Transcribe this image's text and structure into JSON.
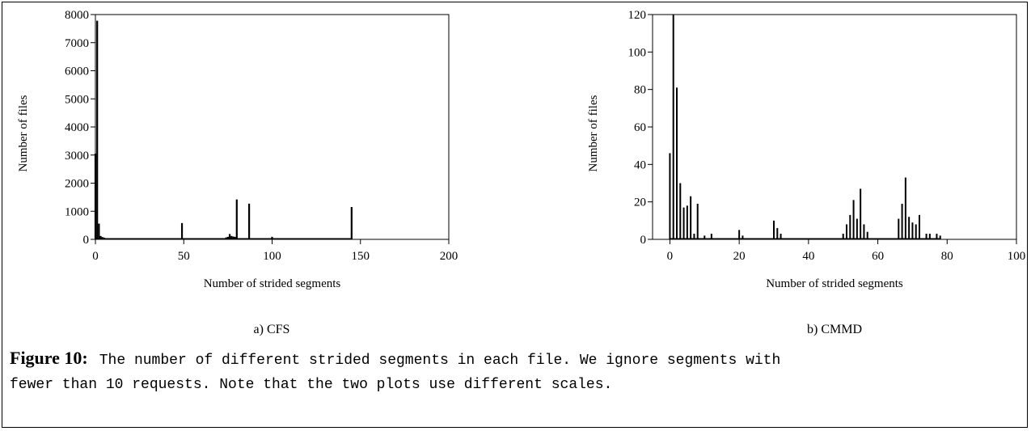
{
  "chart_data": [
    {
      "type": "bar",
      "title": "a) CFS",
      "xlabel": "Number of strided segments",
      "ylabel": "Number of files",
      "xlim": [
        0,
        200
      ],
      "ylim": [
        0,
        8000
      ],
      "xticks": [
        0,
        50,
        100,
        150,
        200
      ],
      "yticks": [
        0,
        1000,
        2000,
        3000,
        4000,
        5000,
        6000,
        7000,
        8000
      ],
      "grid": false,
      "x": [
        0,
        1,
        2,
        3,
        4,
        5,
        6,
        7,
        8,
        10,
        12,
        15,
        20,
        25,
        30,
        35,
        40,
        43,
        45,
        47,
        49,
        52,
        55,
        60,
        65,
        70,
        73,
        74,
        75,
        76,
        77,
        78,
        79,
        80,
        82,
        87,
        90,
        95,
        100,
        110,
        120,
        125,
        130,
        140,
        142,
        145
      ],
      "values": [
        3050,
        7780,
        560,
        120,
        80,
        60,
        40,
        30,
        25,
        20,
        15,
        12,
        10,
        10,
        10,
        10,
        10,
        20,
        30,
        20,
        580,
        20,
        15,
        10,
        10,
        10,
        30,
        70,
        90,
        190,
        120,
        100,
        90,
        1420,
        30,
        1270,
        20,
        15,
        90,
        10,
        10,
        15,
        10,
        10,
        20,
        1150
      ]
    },
    {
      "type": "bar",
      "title": "b) CMMD",
      "xlabel": "Number of strided segments",
      "ylabel": "Number of files",
      "xlim": [
        -5,
        100
      ],
      "ylim": [
        0,
        120
      ],
      "xticks": [
        0,
        20,
        40,
        60,
        80,
        100
      ],
      "yticks": [
        0,
        20,
        40,
        60,
        80,
        100,
        120
      ],
      "grid": false,
      "x": [
        0,
        1,
        2,
        3,
        4,
        5,
        6,
        7,
        8,
        10,
        12,
        20,
        21,
        30,
        31,
        32,
        50,
        51,
        52,
        53,
        54,
        55,
        56,
        57,
        66,
        67,
        68,
        69,
        70,
        71,
        72,
        74,
        75,
        77,
        78
      ],
      "values": [
        46,
        120,
        81,
        30,
        17,
        18,
        23,
        3,
        19,
        2,
        3,
        5,
        2,
        10,
        6,
        3,
        3,
        8,
        13,
        21,
        11,
        27,
        8,
        4,
        11,
        19,
        33,
        12,
        9,
        8,
        13,
        3,
        3,
        3,
        2
      ]
    }
  ],
  "caption": {
    "label": "Figure 10:",
    "line1": "The number of different strided segments in each file. We ignore segments with",
    "line2": "fewer than 10 requests. Note that the two plots use different scales."
  }
}
